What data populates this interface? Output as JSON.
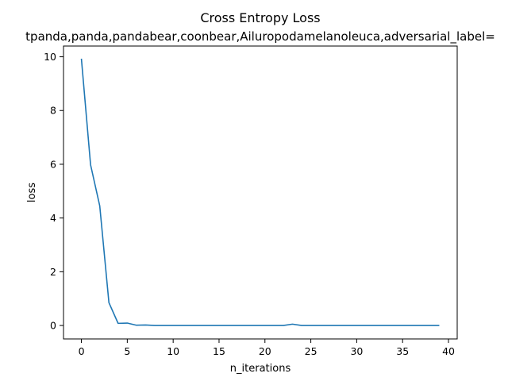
{
  "chart_data": {
    "type": "line",
    "title": "Cross Entropy Loss",
    "subtitle": "tpanda,panda,pandabear,coonbear,Ailuropodamelanoleuca,adversarial_label=",
    "xlabel": "n_iterations",
    "ylabel": "loss",
    "xlim": [
      -1.95,
      40.95
    ],
    "ylim": [
      -0.5,
      10.4
    ],
    "x_ticks": [
      0,
      5,
      10,
      15,
      20,
      25,
      30,
      35,
      40
    ],
    "y_ticks": [
      0,
      2,
      4,
      6,
      8,
      10
    ],
    "grid": false,
    "line_color": "#1f77b4",
    "series": [
      {
        "x": [
          0,
          1,
          2,
          3,
          4,
          5,
          6,
          7,
          8,
          9,
          10,
          11,
          12,
          13,
          14,
          15,
          16,
          17,
          18,
          19,
          20,
          21,
          22,
          23,
          24,
          25,
          26,
          27,
          28,
          29,
          30,
          31,
          32,
          33,
          34,
          35,
          36,
          37,
          38,
          39
        ],
        "values": [
          9.93,
          5.98,
          4.45,
          0.85,
          0.08,
          0.09,
          0.01,
          0.02,
          0.0,
          0.0,
          0.0,
          0.0,
          0.0,
          0.0,
          0.0,
          0.0,
          0.0,
          0.0,
          0.0,
          0.0,
          0.0,
          0.0,
          0.0,
          0.05,
          0.0,
          0.0,
          0.0,
          0.0,
          0.0,
          0.0,
          0.0,
          0.0,
          0.0,
          0.0,
          0.0,
          0.0,
          0.0,
          0.0,
          0.0,
          0.0
        ]
      }
    ]
  }
}
